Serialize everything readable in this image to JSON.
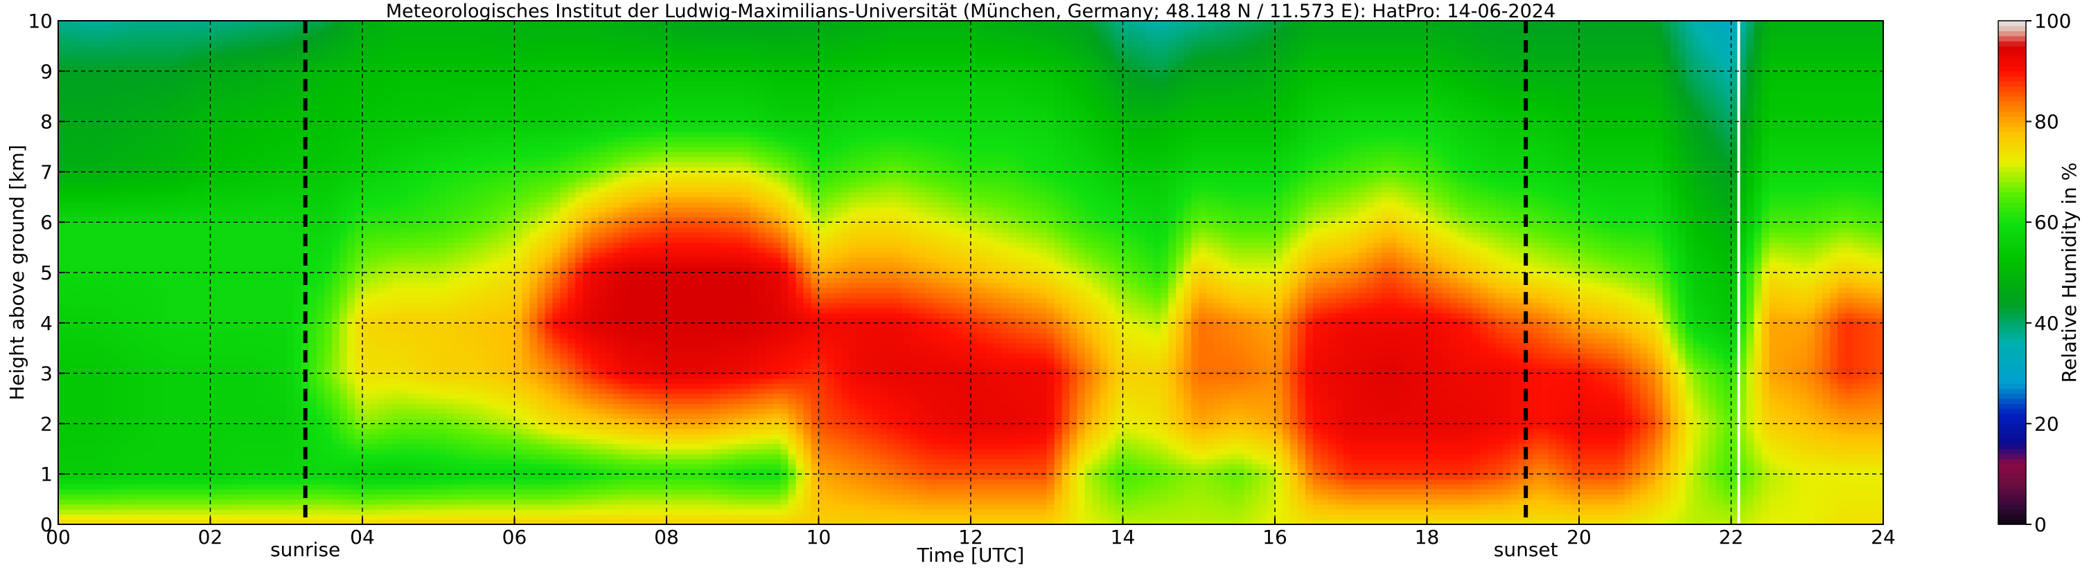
{
  "chart_data": {
    "type": "heatmap",
    "title": "Meteorologisches Institut der Ludwig-Maximilians-Universität (München, Germany; 48.148 N / 11.573 E):    HatPro: 14-06-2024",
    "xlabel": "Time [UTC]",
    "ylabel": "Height above ground [km]",
    "xlim": [
      0,
      24
    ],
    "ylim": [
      0,
      10
    ],
    "x_ticks": [
      0,
      2,
      4,
      6,
      8,
      10,
      12,
      14,
      16,
      18,
      20,
      22,
      24
    ],
    "x_tick_labels": [
      "00",
      "02",
      "04",
      "06",
      "08",
      "10",
      "12",
      "14",
      "16",
      "18",
      "20",
      "22",
      "24"
    ],
    "y_ticks": [
      0,
      1,
      2,
      3,
      4,
      5,
      6,
      7,
      8,
      9,
      10
    ],
    "y_tick_labels": [
      "0",
      "1",
      "2",
      "3",
      "4",
      "5",
      "6",
      "7",
      "8",
      "9",
      "10"
    ],
    "grid": true,
    "colorbar": {
      "label": "Relative Humidity in %",
      "min": 0,
      "max": 100,
      "ticks": [
        0,
        20,
        40,
        60,
        80,
        100
      ],
      "tick_labels": [
        "0",
        "20",
        "40",
        "60",
        "80",
        "100"
      ]
    },
    "markers": [
      {
        "label": "sunrise",
        "time": 3.25
      },
      {
        "label": "sunset",
        "time": 19.3
      }
    ],
    "data_gap_time": 22.1,
    "rh_profiles": [
      {
        "time": 0.0,
        "rh": [
          75,
          55,
          54,
          54,
          56,
          58,
          58,
          48,
          46,
          44,
          38
        ]
      },
      {
        "time": 0.5,
        "rh": [
          75,
          55,
          54,
          54,
          56,
          58,
          58,
          48,
          46,
          44,
          37
        ]
      },
      {
        "time": 1.0,
        "rh": [
          75,
          56,
          55,
          55,
          57,
          58,
          58,
          49,
          47,
          44,
          38
        ]
      },
      {
        "time": 1.5,
        "rh": [
          75,
          56,
          56,
          56,
          58,
          58,
          58,
          50,
          48,
          44,
          38
        ]
      },
      {
        "time": 2.0,
        "rh": [
          75,
          56,
          56,
          56,
          58,
          58,
          58,
          52,
          50,
          46,
          38
        ]
      },
      {
        "time": 2.5,
        "rh": [
          75,
          57,
          56,
          56,
          58,
          58,
          58,
          53,
          51,
          47,
          39
        ]
      },
      {
        "time": 3.0,
        "rh": [
          75,
          57,
          56,
          57,
          58,
          58,
          58,
          54,
          52,
          48,
          40
        ]
      },
      {
        "time": 3.5,
        "rh": [
          75,
          58,
          60,
          66,
          64,
          60,
          57,
          54,
          52,
          50,
          42
        ]
      },
      {
        "time": 4.0,
        "rh": [
          75,
          56,
          68,
          74,
          75,
          68,
          62,
          56,
          53,
          51,
          47
        ]
      },
      {
        "time": 4.5,
        "rh": [
          76,
          56,
          66,
          74,
          76,
          70,
          62,
          58,
          54,
          52,
          49
        ]
      },
      {
        "time": 5.0,
        "rh": [
          76,
          57,
          66,
          76,
          76,
          70,
          63,
          60,
          54,
          52,
          49
        ]
      },
      {
        "time": 5.5,
        "rh": [
          76,
          58,
          68,
          76,
          77,
          72,
          65,
          61,
          55,
          52,
          49
        ]
      },
      {
        "time": 6.0,
        "rh": [
          76,
          58,
          70,
          78,
          78,
          74,
          68,
          62,
          55,
          52,
          48
        ]
      },
      {
        "time": 6.5,
        "rh": [
          76,
          58,
          74,
          82,
          90,
          82,
          72,
          63,
          55,
          53,
          48
        ]
      },
      {
        "time": 7.0,
        "rh": [
          76,
          60,
          76,
          88,
          94,
          92,
          80,
          66,
          56,
          53,
          48
        ]
      },
      {
        "time": 7.5,
        "rh": [
          76,
          62,
          78,
          92,
          95,
          95,
          84,
          70,
          57,
          53,
          47
        ]
      },
      {
        "time": 8.0,
        "rh": [
          76,
          62,
          80,
          93,
          95,
          95,
          86,
          72,
          58,
          53,
          46
        ]
      },
      {
        "time": 8.5,
        "rh": [
          76,
          62,
          80,
          93,
          95,
          95,
          86,
          72,
          58,
          53,
          45
        ]
      },
      {
        "time": 9.0,
        "rh": [
          76,
          60,
          78,
          92,
          95,
          95,
          85,
          72,
          58,
          53,
          45
        ]
      },
      {
        "time": 9.5,
        "rh": [
          76,
          60,
          76,
          90,
          94,
          93,
          80,
          68,
          56,
          52,
          45
        ]
      },
      {
        "time": 10.0,
        "rh": [
          76,
          80,
          86,
          88,
          92,
          80,
          70,
          62,
          56,
          52,
          46
        ]
      },
      {
        "time": 10.5,
        "rh": [
          76,
          82,
          88,
          92,
          92,
          82,
          74,
          64,
          58,
          53,
          47
        ]
      },
      {
        "time": 11.0,
        "rh": [
          76,
          84,
          90,
          93,
          92,
          82,
          74,
          66,
          58,
          54,
          48
        ]
      },
      {
        "time": 11.5,
        "rh": [
          76,
          86,
          92,
          93,
          90,
          80,
          72,
          64,
          58,
          54,
          48
        ]
      },
      {
        "time": 12.0,
        "rh": [
          76,
          86,
          93,
          93,
          88,
          78,
          70,
          62,
          58,
          54,
          48
        ]
      },
      {
        "time": 12.5,
        "rh": [
          76,
          86,
          93,
          92,
          86,
          76,
          68,
          62,
          58,
          54,
          47
        ]
      },
      {
        "time": 13.0,
        "rh": [
          76,
          86,
          92,
          92,
          84,
          74,
          66,
          60,
          57,
          53,
          46
        ]
      },
      {
        "time": 13.5,
        "rh": [
          72,
          70,
          80,
          84,
          78,
          70,
          62,
          58,
          54,
          50,
          44
        ]
      },
      {
        "time": 14.0,
        "rh": [
          70,
          64,
          72,
          76,
          72,
          66,
          60,
          55,
          50,
          44,
          38
        ]
      },
      {
        "time": 14.5,
        "rh": [
          70,
          66,
          74,
          76,
          70,
          62,
          58,
          55,
          50,
          42,
          36
        ]
      },
      {
        "time": 15.0,
        "rh": [
          70,
          68,
          80,
          84,
          84,
          76,
          66,
          58,
          52,
          46,
          38
        ]
      },
      {
        "time": 15.5,
        "rh": [
          70,
          66,
          78,
          84,
          82,
          72,
          64,
          58,
          52,
          46,
          40
        ]
      },
      {
        "time": 16.0,
        "rh": [
          72,
          70,
          80,
          82,
          80,
          72,
          64,
          58,
          52,
          48,
          42
        ]
      },
      {
        "time": 16.5,
        "rh": [
          74,
          84,
          90,
          92,
          90,
          80,
          70,
          62,
          56,
          52,
          46
        ]
      },
      {
        "time": 17.0,
        "rh": [
          74,
          88,
          93,
          93,
          92,
          82,
          72,
          64,
          58,
          52,
          46
        ]
      },
      {
        "time": 17.5,
        "rh": [
          74,
          88,
          93,
          94,
          92,
          86,
          76,
          66,
          58,
          52,
          46
        ]
      },
      {
        "time": 18.0,
        "rh": [
          74,
          88,
          93,
          93,
          92,
          82,
          72,
          64,
          58,
          52,
          46
        ]
      },
      {
        "time": 18.5,
        "rh": [
          74,
          88,
          93,
          92,
          90,
          78,
          68,
          60,
          56,
          50,
          45
        ]
      },
      {
        "time": 19.0,
        "rh": [
          74,
          86,
          92,
          92,
          86,
          74,
          66,
          58,
          54,
          48,
          44
        ]
      },
      {
        "time": 19.5,
        "rh": [
          74,
          82,
          90,
          90,
          84,
          72,
          64,
          58,
          54,
          48,
          44
        ]
      },
      {
        "time": 20.0,
        "rh": [
          74,
          86,
          92,
          90,
          80,
          70,
          62,
          56,
          52,
          48,
          44
        ]
      },
      {
        "time": 20.5,
        "rh": [
          74,
          86,
          92,
          88,
          78,
          68,
          60,
          56,
          52,
          48,
          44
        ]
      },
      {
        "time": 21.0,
        "rh": [
          72,
          80,
          86,
          82,
          74,
          66,
          60,
          56,
          52,
          48,
          44
        ]
      },
      {
        "time": 21.5,
        "rh": [
          70,
          70,
          72,
          68,
          58,
          55,
          52,
          48,
          45,
          40,
          36
        ]
      },
      {
        "time": 22.0,
        "rh": [
          70,
          64,
          66,
          62,
          54,
          52,
          48,
          44,
          40,
          36,
          32
        ]
      },
      {
        "time": 22.5,
        "rh": [
          72,
          70,
          76,
          80,
          80,
          74,
          64,
          58,
          54,
          52,
          48
        ]
      },
      {
        "time": 23.0,
        "rh": [
          72,
          72,
          78,
          82,
          80,
          72,
          64,
          58,
          54,
          52,
          48
        ]
      },
      {
        "time": 23.5,
        "rh": [
          74,
          72,
          80,
          88,
          88,
          76,
          66,
          58,
          54,
          52,
          48
        ]
      },
      {
        "time": 24.0,
        "rh": [
          74,
          72,
          80,
          86,
          86,
          74,
          64,
          58,
          54,
          52,
          48
        ]
      }
    ],
    "palette": [
      {
        "v": 0,
        "color": "#0a0510"
      },
      {
        "v": 4,
        "color": "#3a0a3c"
      },
      {
        "v": 8,
        "color": "#6a0d3e"
      },
      {
        "v": 12,
        "color": "#8a0a45"
      },
      {
        "v": 16,
        "color": "#0a0a90"
      },
      {
        "v": 22,
        "color": "#0020c0"
      },
      {
        "v": 28,
        "color": "#00a0d0"
      },
      {
        "v": 36,
        "color": "#00b0b0"
      },
      {
        "v": 44,
        "color": "#00a020"
      },
      {
        "v": 52,
        "color": "#00c000"
      },
      {
        "v": 60,
        "color": "#10e010"
      },
      {
        "v": 66,
        "color": "#60f000"
      },
      {
        "v": 72,
        "color": "#e8f000"
      },
      {
        "v": 78,
        "color": "#ffc000"
      },
      {
        "v": 84,
        "color": "#ff7000"
      },
      {
        "v": 90,
        "color": "#ff1000"
      },
      {
        "v": 95,
        "color": "#d80000"
      },
      {
        "v": 98,
        "color": "#e0b0a0"
      },
      {
        "v": 100,
        "color": "#e8e8e8"
      }
    ]
  }
}
